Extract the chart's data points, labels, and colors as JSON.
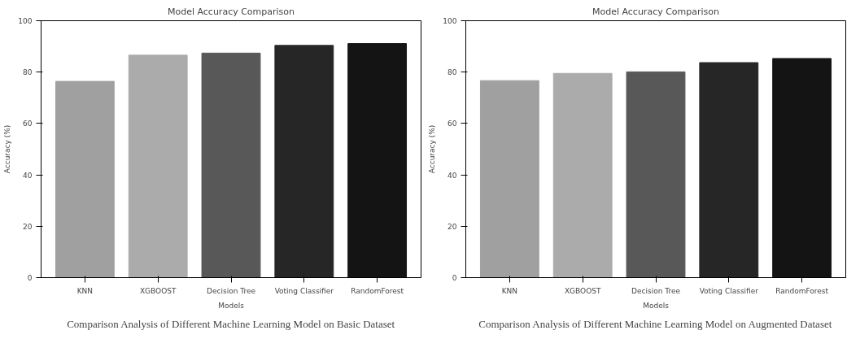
{
  "chart_data": [
    {
      "type": "bar",
      "title": "Model Accuracy Comparison",
      "xlabel": "Models",
      "ylabel": "Accuracy (%)",
      "categories": [
        "KNN",
        "XGBOOST",
        "Decision Tree",
        "Voting Classifier",
        "RandomForest"
      ],
      "values": [
        76.4,
        86.6,
        87.4,
        90.4,
        91.1
      ],
      "colors": [
        "#a0a0a0",
        "#ababab",
        "#585858",
        "#262626",
        "#141414"
      ],
      "ylim": [
        0,
        100
      ],
      "yticks": [
        0,
        20,
        40,
        60,
        80,
        100
      ],
      "grid": false,
      "annotations": [
        "Comparison Analysis of Different Machine Learning Model on Basic Dataset"
      ]
    },
    {
      "type": "bar",
      "title": "Model Accuracy Comparison",
      "xlabel": "Models",
      "ylabel": "Accuracy (%)",
      "categories": [
        "KNN",
        "XGBOOST",
        "Decision Tree",
        "Voting Classifier",
        "RandomForest"
      ],
      "values": [
        76.7,
        79.5,
        80.1,
        83.7,
        85.3
      ],
      "colors": [
        "#a0a0a0",
        "#ababab",
        "#585858",
        "#262626",
        "#141414"
      ],
      "ylim": [
        0,
        100
      ],
      "yticks": [
        0,
        20,
        40,
        60,
        80,
        100
      ],
      "grid": false,
      "annotations": [
        "Comparison Analysis of Different Machine Learning Model on Augmented Dataset"
      ]
    }
  ]
}
